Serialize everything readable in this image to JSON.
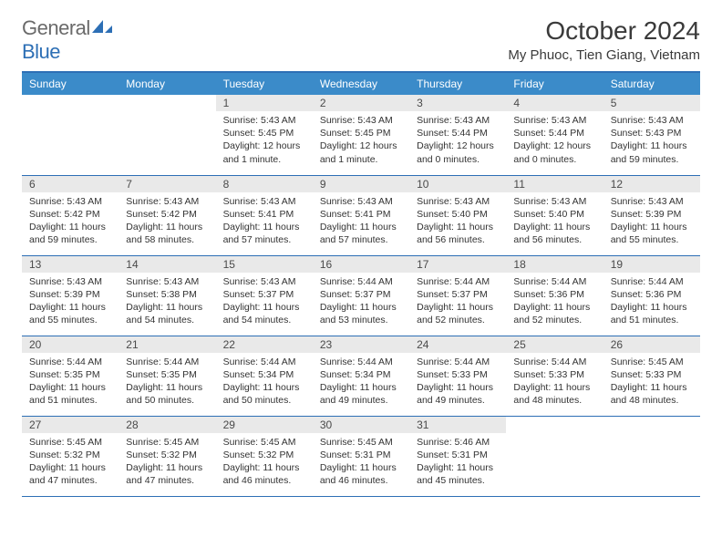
{
  "brand": {
    "name_part1": "General",
    "name_part2": "Blue",
    "text_color": "#6a6a6a",
    "accent_color": "#2d6fb5"
  },
  "header": {
    "month_title": "October 2024",
    "location": "My Phuoc, Tien Giang, Vietnam"
  },
  "colors": {
    "header_bg": "#3b8bc9",
    "header_border": "#2d6fb5",
    "row_border": "#2d6fb5",
    "daynum_bg": "#e9e9e9",
    "text": "#333333"
  },
  "weekdays": [
    "Sunday",
    "Monday",
    "Tuesday",
    "Wednesday",
    "Thursday",
    "Friday",
    "Saturday"
  ],
  "weeks": [
    [
      {
        "empty": true
      },
      {
        "empty": true
      },
      {
        "day": "1",
        "sunrise": "5:43 AM",
        "sunset": "5:45 PM",
        "daylight": "12 hours and 1 minute."
      },
      {
        "day": "2",
        "sunrise": "5:43 AM",
        "sunset": "5:45 PM",
        "daylight": "12 hours and 1 minute."
      },
      {
        "day": "3",
        "sunrise": "5:43 AM",
        "sunset": "5:44 PM",
        "daylight": "12 hours and 0 minutes."
      },
      {
        "day": "4",
        "sunrise": "5:43 AM",
        "sunset": "5:44 PM",
        "daylight": "12 hours and 0 minutes."
      },
      {
        "day": "5",
        "sunrise": "5:43 AM",
        "sunset": "5:43 PM",
        "daylight": "11 hours and 59 minutes."
      }
    ],
    [
      {
        "day": "6",
        "sunrise": "5:43 AM",
        "sunset": "5:42 PM",
        "daylight": "11 hours and 59 minutes."
      },
      {
        "day": "7",
        "sunrise": "5:43 AM",
        "sunset": "5:42 PM",
        "daylight": "11 hours and 58 minutes."
      },
      {
        "day": "8",
        "sunrise": "5:43 AM",
        "sunset": "5:41 PM",
        "daylight": "11 hours and 57 minutes."
      },
      {
        "day": "9",
        "sunrise": "5:43 AM",
        "sunset": "5:41 PM",
        "daylight": "11 hours and 57 minutes."
      },
      {
        "day": "10",
        "sunrise": "5:43 AM",
        "sunset": "5:40 PM",
        "daylight": "11 hours and 56 minutes."
      },
      {
        "day": "11",
        "sunrise": "5:43 AM",
        "sunset": "5:40 PM",
        "daylight": "11 hours and 56 minutes."
      },
      {
        "day": "12",
        "sunrise": "5:43 AM",
        "sunset": "5:39 PM",
        "daylight": "11 hours and 55 minutes."
      }
    ],
    [
      {
        "day": "13",
        "sunrise": "5:43 AM",
        "sunset": "5:39 PM",
        "daylight": "11 hours and 55 minutes."
      },
      {
        "day": "14",
        "sunrise": "5:43 AM",
        "sunset": "5:38 PM",
        "daylight": "11 hours and 54 minutes."
      },
      {
        "day": "15",
        "sunrise": "5:43 AM",
        "sunset": "5:37 PM",
        "daylight": "11 hours and 54 minutes."
      },
      {
        "day": "16",
        "sunrise": "5:44 AM",
        "sunset": "5:37 PM",
        "daylight": "11 hours and 53 minutes."
      },
      {
        "day": "17",
        "sunrise": "5:44 AM",
        "sunset": "5:37 PM",
        "daylight": "11 hours and 52 minutes."
      },
      {
        "day": "18",
        "sunrise": "5:44 AM",
        "sunset": "5:36 PM",
        "daylight": "11 hours and 52 minutes."
      },
      {
        "day": "19",
        "sunrise": "5:44 AM",
        "sunset": "5:36 PM",
        "daylight": "11 hours and 51 minutes."
      }
    ],
    [
      {
        "day": "20",
        "sunrise": "5:44 AM",
        "sunset": "5:35 PM",
        "daylight": "11 hours and 51 minutes."
      },
      {
        "day": "21",
        "sunrise": "5:44 AM",
        "sunset": "5:35 PM",
        "daylight": "11 hours and 50 minutes."
      },
      {
        "day": "22",
        "sunrise": "5:44 AM",
        "sunset": "5:34 PM",
        "daylight": "11 hours and 50 minutes."
      },
      {
        "day": "23",
        "sunrise": "5:44 AM",
        "sunset": "5:34 PM",
        "daylight": "11 hours and 49 minutes."
      },
      {
        "day": "24",
        "sunrise": "5:44 AM",
        "sunset": "5:33 PM",
        "daylight": "11 hours and 49 minutes."
      },
      {
        "day": "25",
        "sunrise": "5:44 AM",
        "sunset": "5:33 PM",
        "daylight": "11 hours and 48 minutes."
      },
      {
        "day": "26",
        "sunrise": "5:45 AM",
        "sunset": "5:33 PM",
        "daylight": "11 hours and 48 minutes."
      }
    ],
    [
      {
        "day": "27",
        "sunrise": "5:45 AM",
        "sunset": "5:32 PM",
        "daylight": "11 hours and 47 minutes."
      },
      {
        "day": "28",
        "sunrise": "5:45 AM",
        "sunset": "5:32 PM",
        "daylight": "11 hours and 47 minutes."
      },
      {
        "day": "29",
        "sunrise": "5:45 AM",
        "sunset": "5:32 PM",
        "daylight": "11 hours and 46 minutes."
      },
      {
        "day": "30",
        "sunrise": "5:45 AM",
        "sunset": "5:31 PM",
        "daylight": "11 hours and 46 minutes."
      },
      {
        "day": "31",
        "sunrise": "5:46 AM",
        "sunset": "5:31 PM",
        "daylight": "11 hours and 45 minutes."
      },
      {
        "empty": true
      },
      {
        "empty": true
      }
    ]
  ],
  "labels": {
    "sunrise_prefix": "Sunrise: ",
    "sunset_prefix": "Sunset: ",
    "daylight_prefix": "Daylight: "
  }
}
